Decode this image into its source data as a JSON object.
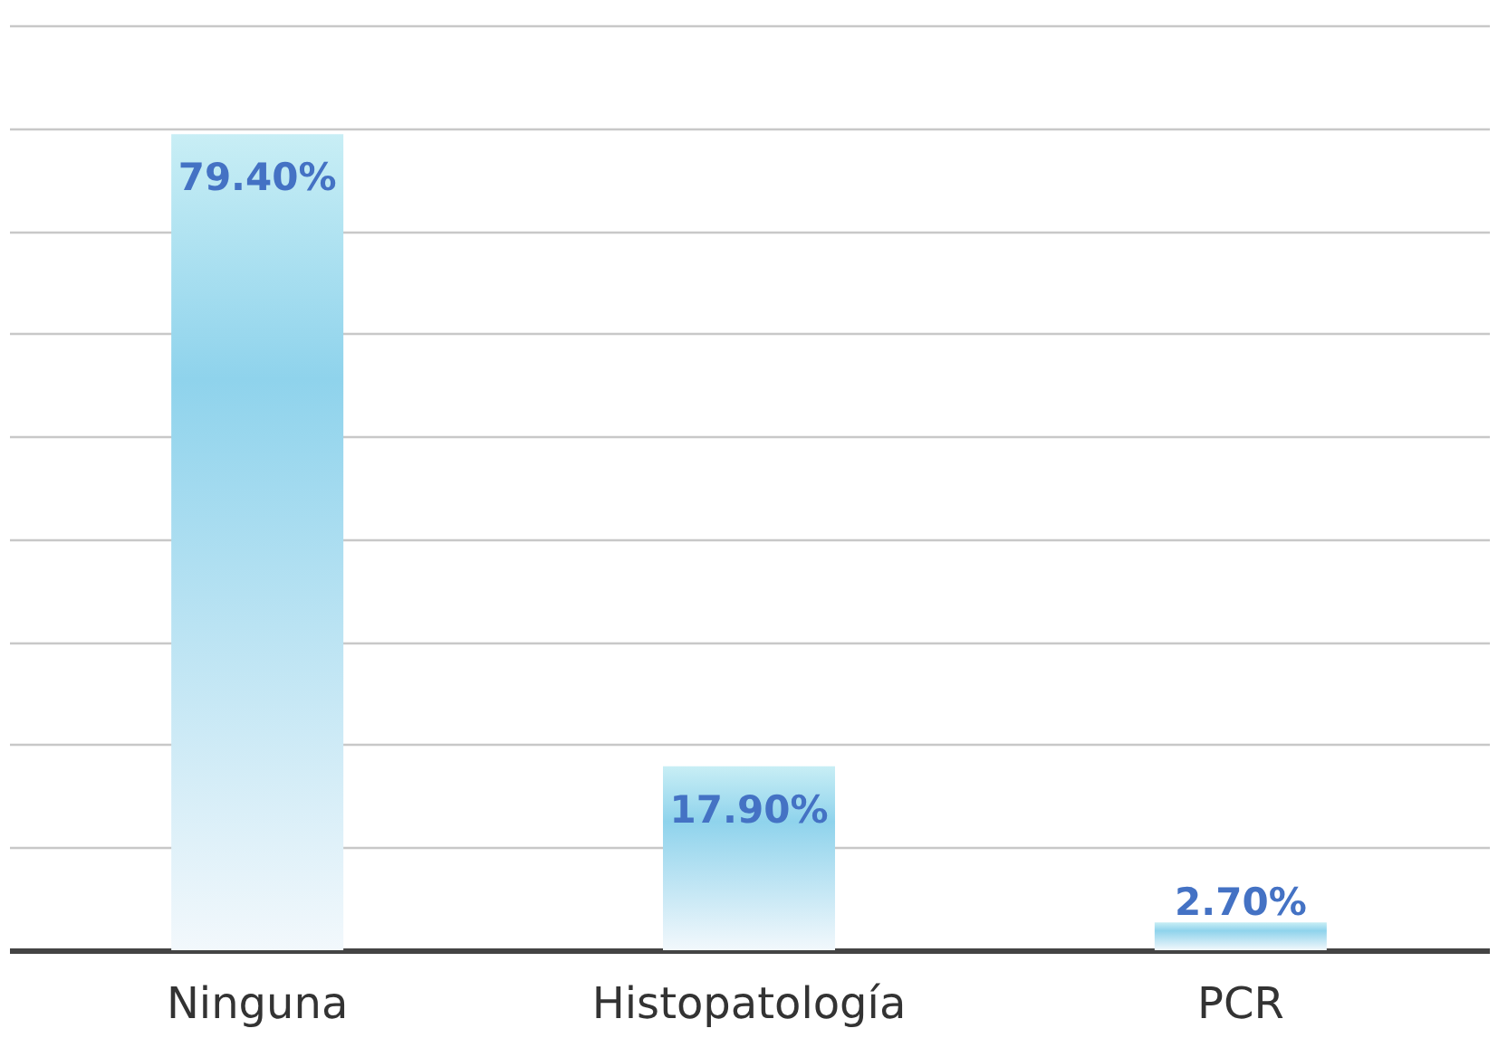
{
  "chart_data": {
    "type": "bar",
    "categories": [
      "Ninguna",
      "Histopatología",
      "PCR"
    ],
    "values": [
      79.4,
      17.9,
      2.7
    ],
    "value_labels": [
      "79.40%",
      "17.90%",
      "2.70%"
    ],
    "color": "#8fd3ec",
    "ylim": [
      0,
      90
    ],
    "yticks": [
      0,
      10,
      20,
      30,
      40,
      50,
      60,
      70,
      80,
      90
    ],
    "grid": "y",
    "tick_labels": "x"
  }
}
